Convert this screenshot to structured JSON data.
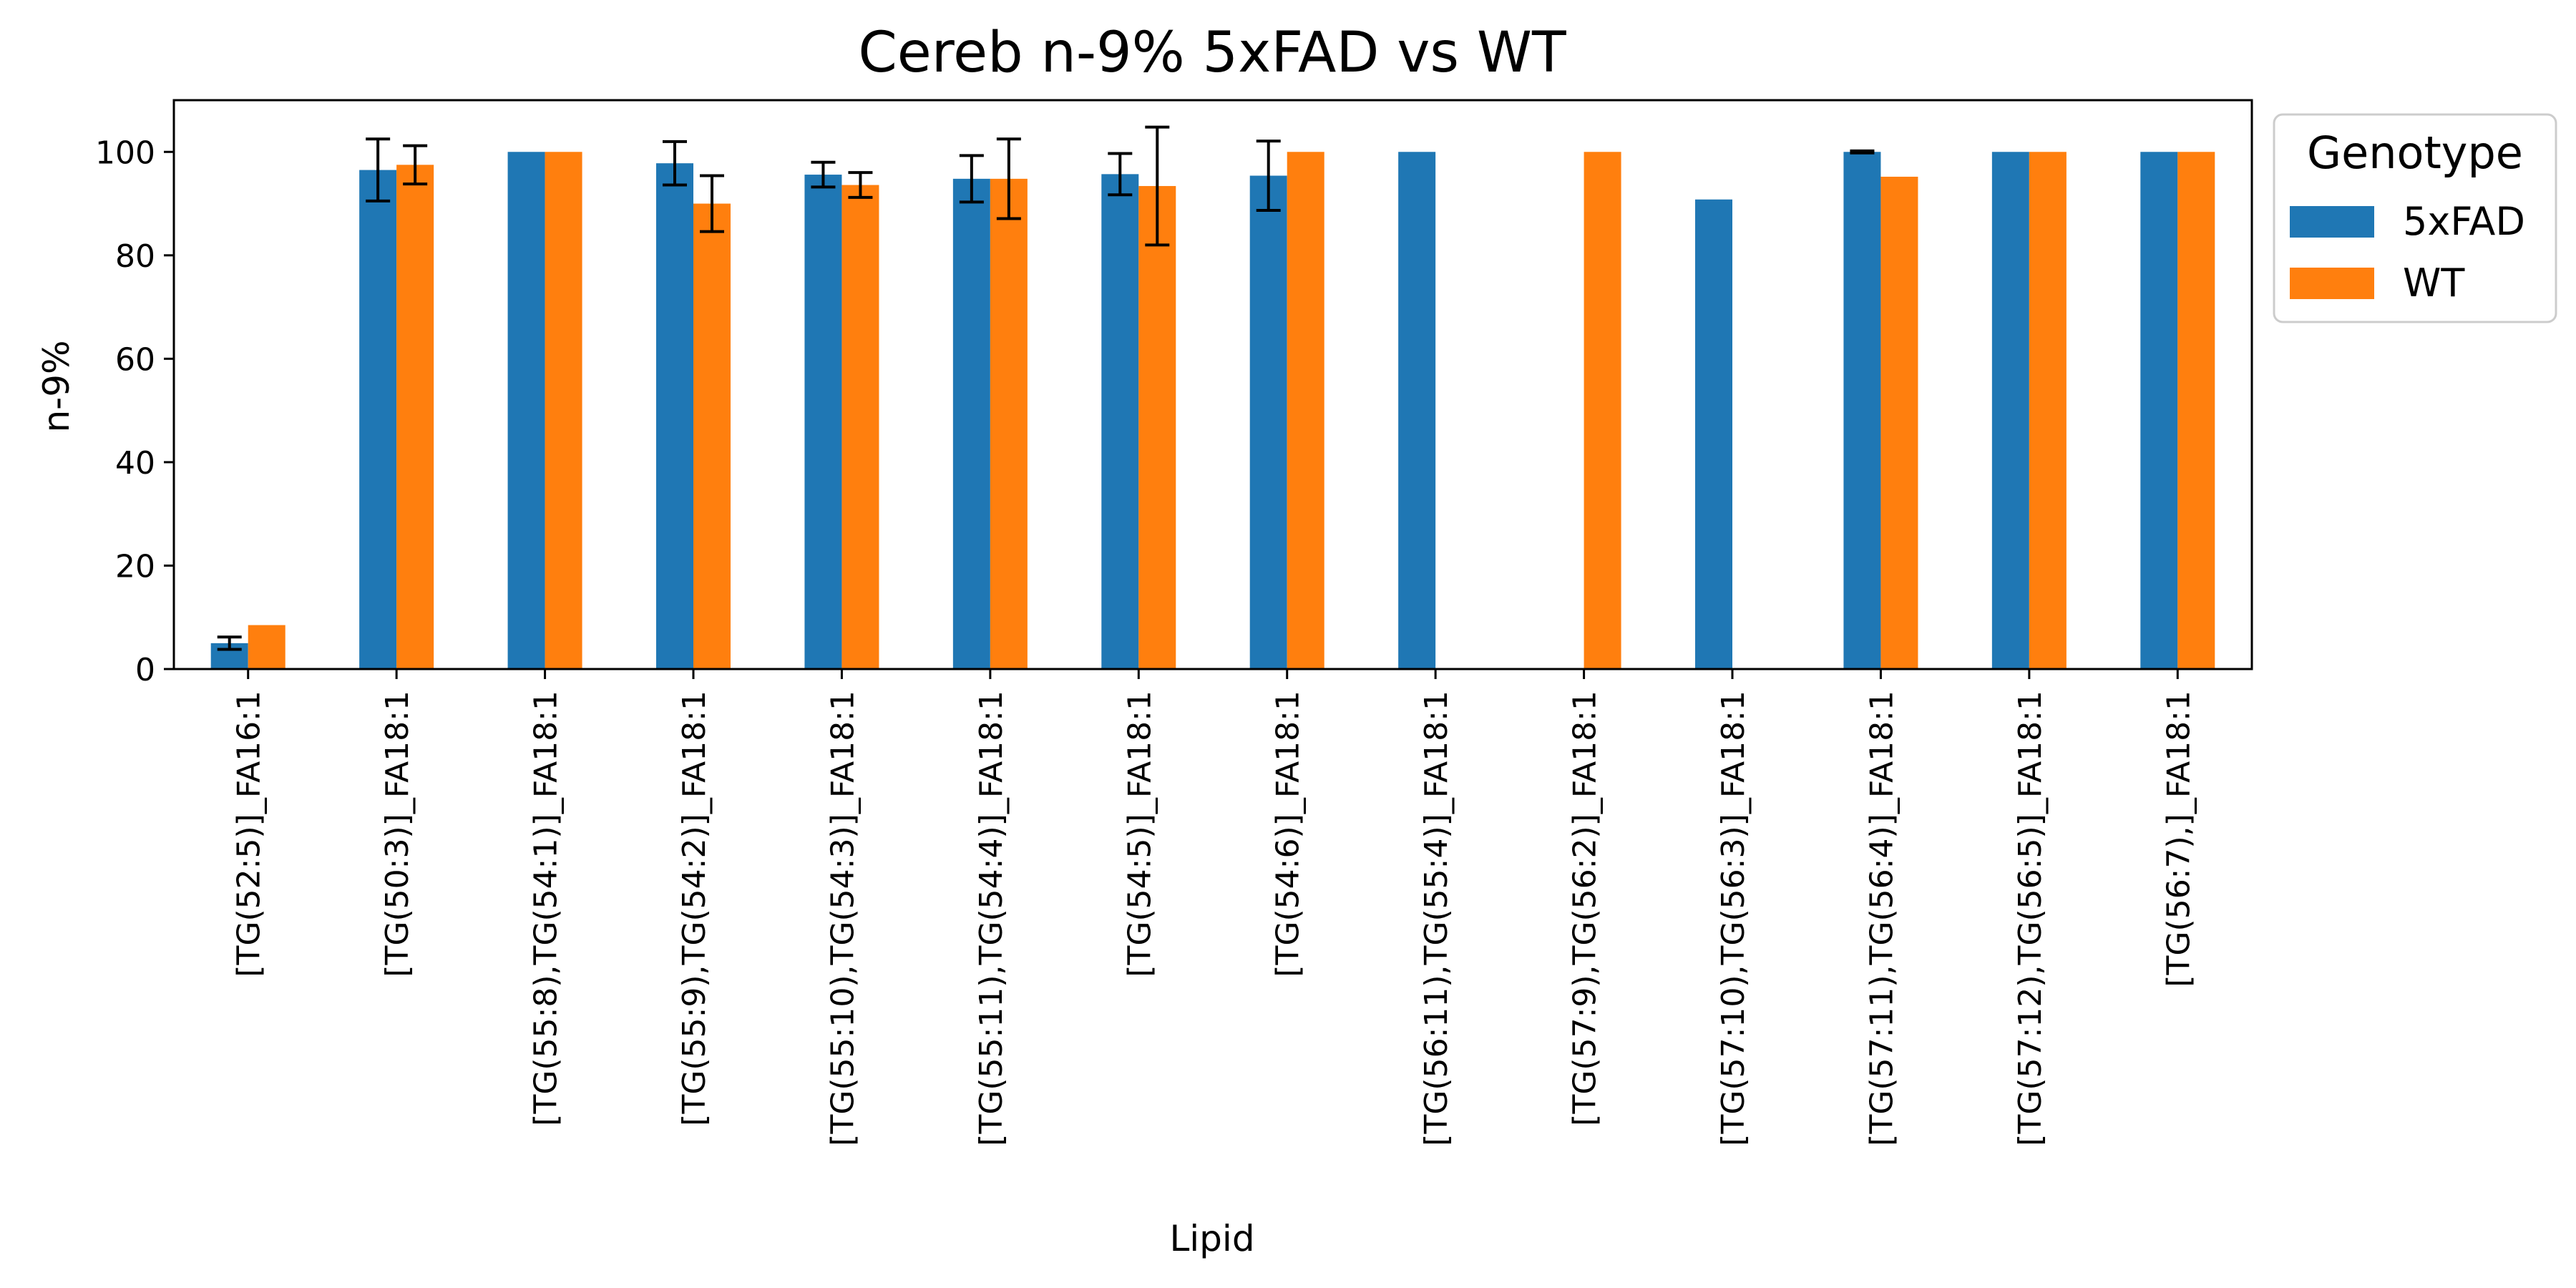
{
  "chart_data": {
    "type": "bar",
    "title": "Cereb n-9% 5xFAD vs WT",
    "xlabel": "Lipid",
    "ylabel": "n-9%",
    "ylim": [
      0,
      110
    ],
    "yticks": [
      0,
      20,
      40,
      60,
      80,
      100
    ],
    "grid": false,
    "legend": {
      "title": "Genotype",
      "placement": "outside right, top"
    },
    "categories": [
      "[TG(52:5)]_FA16:1",
      "[TG(50:3)]_FA18:1",
      "[TG(55:8),TG(54:1)]_FA18:1",
      "[TG(55:9),TG(54:2)]_FA18:1",
      "[TG(55:10),TG(54:3)]_FA18:1",
      "[TG(55:11),TG(54:4)]_FA18:1",
      "[TG(54:5)]_FA18:1",
      "[TG(54:6)]_FA18:1",
      "[TG(56:11),TG(55:4)]_FA18:1",
      "[TG(57:9),TG(56:2)]_FA18:1",
      "[TG(57:10),TG(56:3)]_FA18:1",
      "[TG(57:11),TG(56:4)]_FA18:1",
      "[TG(57:12),TG(56:5)]_FA18:1",
      "[TG(56:7),]_FA18:1"
    ],
    "series": [
      {
        "name": "5xFAD",
        "color": "#1f77b4",
        "values": [
          5.0,
          96.5,
          100,
          97.8,
          95.6,
          94.8,
          95.7,
          95.4,
          100,
          null,
          90.8,
          100,
          100,
          100
        ],
        "errors": [
          1.2,
          6.0,
          null,
          4.2,
          2.4,
          4.5,
          4.0,
          6.7,
          null,
          null,
          null,
          0.2,
          null,
          null
        ]
      },
      {
        "name": "WT",
        "color": "#ff7f0e",
        "values": [
          8.5,
          97.5,
          100,
          90.0,
          93.6,
          94.8,
          93.4,
          100,
          null,
          100,
          null,
          95.2,
          100,
          100
        ],
        "errors": [
          null,
          3.7,
          null,
          5.4,
          2.4,
          7.7,
          11.4,
          null,
          null,
          null,
          null,
          null,
          null,
          null
        ]
      }
    ]
  }
}
